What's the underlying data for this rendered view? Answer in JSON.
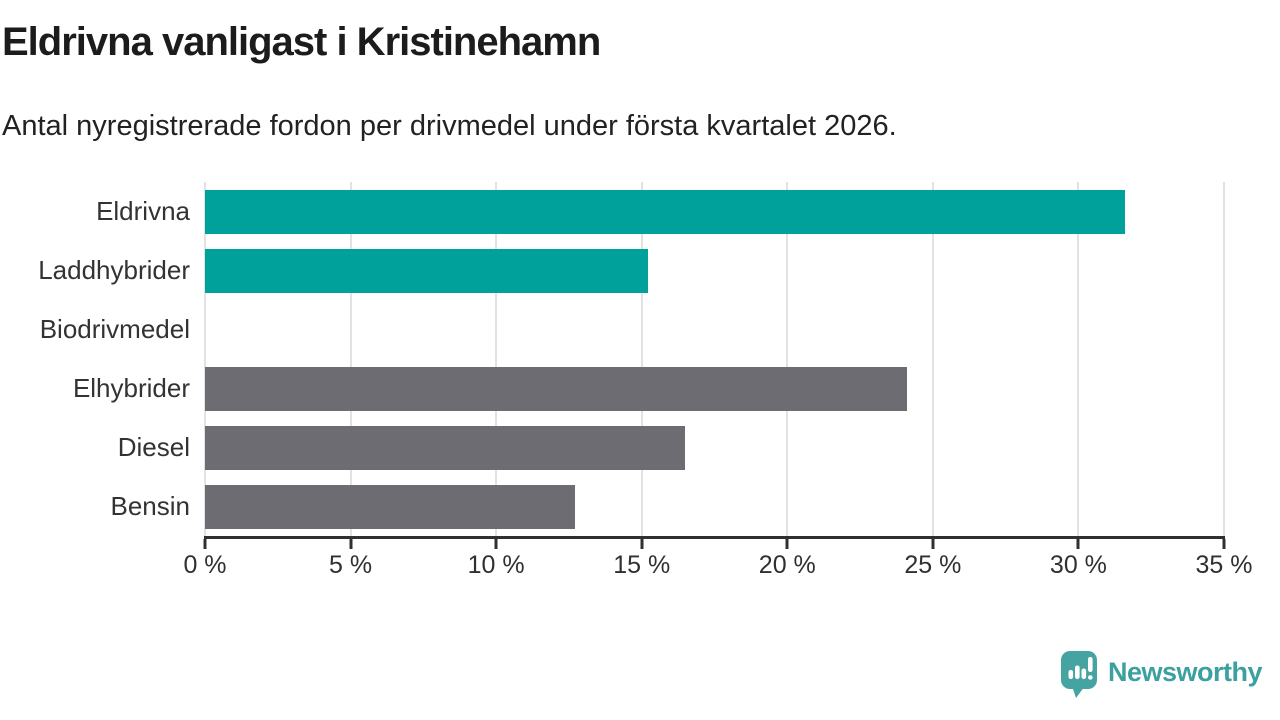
{
  "header": {
    "title": "Eldrivna vanligast i Kristinehamn",
    "subtitle": "Antal nyregistrerade fordon per drivmedel under första kvartalet 2026."
  },
  "chart_data": {
    "type": "bar",
    "orientation": "horizontal",
    "title": "Eldrivna vanligast i Kristinehamn",
    "subtitle": "Antal nyregistrerade fordon per drivmedel under första kvartalet 2026.",
    "categories": [
      "Eldrivna",
      "Laddhybrider",
      "Biodrivmedel",
      "Elhybrider",
      "Diesel",
      "Bensin"
    ],
    "values": [
      31.6,
      15.2,
      0,
      24.1,
      16.5,
      12.7
    ],
    "unit": "%",
    "xlabel": "",
    "ylabel": "",
    "xlim": [
      0,
      35
    ],
    "ticks": [
      0,
      5,
      10,
      15,
      20,
      25,
      30,
      35
    ],
    "tick_labels": [
      "0 %",
      "5 %",
      "10 %",
      "15 %",
      "20 %",
      "25 %",
      "30 %",
      "35 %"
    ],
    "bar_colors": [
      "#00a19a",
      "#00a19a",
      "#00a19a",
      "#6c6c72",
      "#6c6c72",
      "#6c6c72"
    ],
    "highlight_color": "#00a19a",
    "default_color": "#6c6c72",
    "grid": true,
    "legend": null
  },
  "branding": {
    "logo_text": "Newsworthy",
    "logo_color": "#3ba09f",
    "logo_icon": "newsworthy-chart-bubble-icon"
  }
}
